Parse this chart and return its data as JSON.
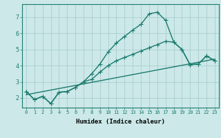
{
  "xlabel": "Humidex (Indice chaleur)",
  "ylabel": "",
  "xlim": [
    -0.5,
    23.5
  ],
  "ylim": [
    1.4,
    7.8
  ],
  "yticks": [
    2,
    3,
    4,
    5,
    6,
    7
  ],
  "xticks": [
    0,
    1,
    2,
    3,
    4,
    5,
    6,
    7,
    8,
    9,
    10,
    11,
    12,
    13,
    14,
    15,
    16,
    17,
    18,
    19,
    20,
    21,
    22,
    23
  ],
  "background_color": "#cce8e8",
  "line_color": "#1a7a6e",
  "grid_color": "#aacece",
  "line1_x": [
    0,
    1,
    2,
    3,
    4,
    5,
    6,
    7,
    8,
    9,
    10,
    11,
    12,
    13,
    14,
    15,
    16,
    17,
    18,
    19,
    20,
    21,
    22,
    23
  ],
  "line1_y": [
    2.4,
    1.9,
    2.1,
    1.65,
    2.35,
    2.4,
    2.65,
    3.0,
    3.5,
    4.1,
    4.85,
    5.4,
    5.8,
    6.2,
    6.55,
    7.2,
    7.3,
    6.8,
    5.45,
    5.0,
    4.05,
    4.1,
    4.6,
    4.3
  ],
  "line2_x": [
    0,
    1,
    2,
    3,
    4,
    5,
    6,
    7,
    8,
    9,
    10,
    11,
    12,
    13,
    14,
    15,
    16,
    17,
    18,
    19,
    20,
    21,
    22,
    23
  ],
  "line2_y": [
    2.4,
    1.9,
    2.1,
    1.65,
    2.35,
    2.4,
    2.65,
    3.0,
    3.15,
    3.6,
    4.0,
    4.3,
    4.5,
    4.7,
    4.9,
    5.1,
    5.3,
    5.5,
    5.45,
    5.0,
    4.05,
    4.1,
    4.6,
    4.3
  ],
  "line3_x": [
    0,
    23
  ],
  "line3_y": [
    2.2,
    4.4
  ],
  "marker_size": 4,
  "linewidth": 1.0
}
